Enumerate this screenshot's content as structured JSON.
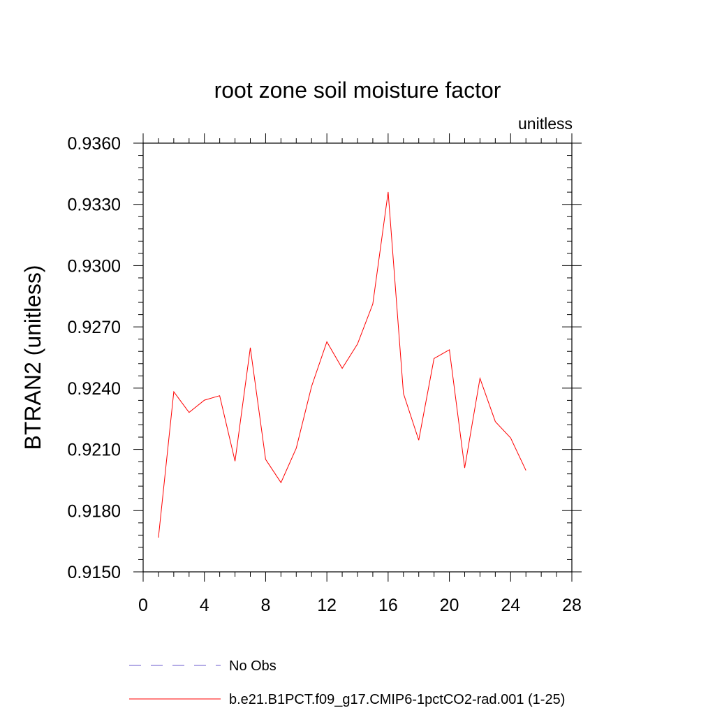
{
  "chart_data": {
    "type": "line",
    "title": "root zone soil moisture factor",
    "units_label": "unitless",
    "ylabel": "BTRAN2  (unitless)",
    "xlabel": "",
    "xlim": [
      0,
      28
    ],
    "ylim": [
      0.915,
      0.936
    ],
    "x_ticks": [
      0,
      4,
      8,
      12,
      16,
      20,
      24,
      28
    ],
    "x_tick_labels": [
      "0",
      "4",
      "8",
      "12",
      "16",
      "20",
      "24",
      "28"
    ],
    "y_ticks": [
      0.915,
      0.918,
      0.921,
      0.924,
      0.927,
      0.93,
      0.933,
      0.936
    ],
    "y_tick_labels": [
      "0.9150",
      "0.9180",
      "0.9210",
      "0.9240",
      "0.9270",
      "0.9300",
      "0.9330",
      "0.9360"
    ],
    "grid": false,
    "legend_position": "bottom",
    "legend": [
      {
        "label": "No Obs",
        "color": "#6a5acd",
        "style": "dashed"
      },
      {
        "label": "b.e21.B1PCT.f09_g17.CMIP6-1pctCO2-rad.001 (1-25)",
        "color": "#ff0000",
        "style": "solid"
      }
    ],
    "series": [
      {
        "name": "b.e21.B1PCT.f09_g17.CMIP6-1pctCO2-rad.001 (1-25)",
        "color": "#ff0000",
        "x": [
          1,
          2,
          3,
          4,
          5,
          6,
          7,
          8,
          9,
          10,
          11,
          12,
          13,
          14,
          15,
          16,
          17,
          18,
          19,
          20,
          21,
          22,
          23,
          24,
          25
        ],
        "y": [
          0.91668,
          0.92382,
          0.92281,
          0.92341,
          0.92363,
          0.92042,
          0.92598,
          0.92051,
          0.91937,
          0.92106,
          0.92408,
          0.92627,
          0.92497,
          0.92616,
          0.92812,
          0.93361,
          0.92374,
          0.92145,
          0.92545,
          0.92588,
          0.92009,
          0.92448,
          0.92236,
          0.92156,
          0.91997
        ]
      }
    ]
  }
}
